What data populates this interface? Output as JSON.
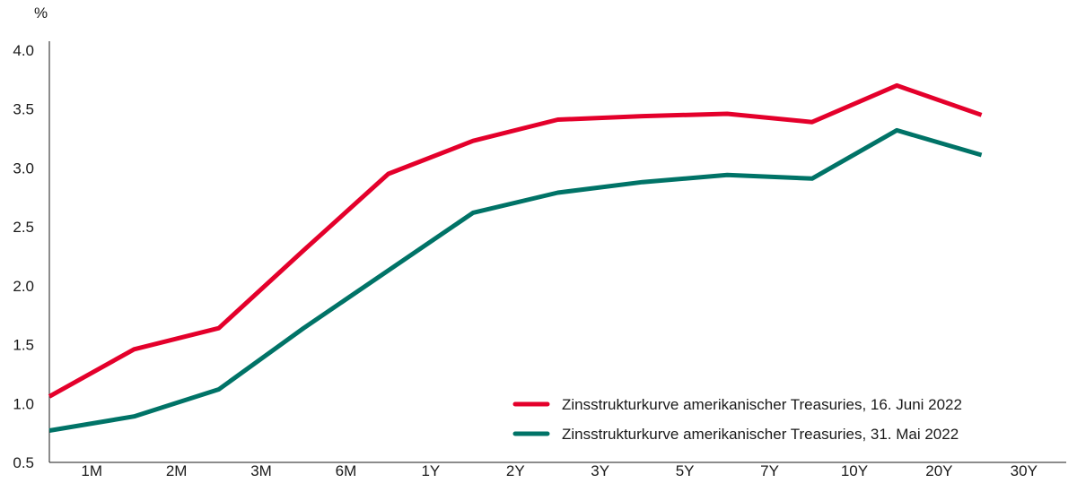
{
  "chart_data": {
    "type": "line",
    "title": "",
    "xlabel": "",
    "ylabel": "%",
    "categories": [
      "1M",
      "2M",
      "3M",
      "6M",
      "1Y",
      "2Y",
      "3Y",
      "5Y",
      "7Y",
      "10Y",
      "20Y",
      "30Y"
    ],
    "y_ticks": [
      "0.5",
      "1.0",
      "1.5",
      "2.0",
      "2.5",
      "3.0",
      "3.5",
      "4.0"
    ],
    "ylim": [
      0.5,
      4.0
    ],
    "grid": false,
    "legend_position": "bottom-right",
    "series": [
      {
        "name": "Zinsstrukturkurve amerikanischer Treasuries, 16. Juni 2022",
        "color": "#e4002b",
        "values": [
          1.06,
          1.46,
          1.64,
          2.3,
          2.95,
          3.23,
          3.41,
          3.44,
          3.46,
          3.39,
          3.7,
          3.45
        ]
      },
      {
        "name": "Zinsstrukturkurve amerikanischer Treasuries, 31. Mai 2022",
        "color": "#007367",
        "values": [
          0.77,
          0.89,
          1.12,
          1.64,
          2.13,
          2.62,
          2.79,
          2.88,
          2.94,
          2.91,
          3.32,
          3.11
        ]
      }
    ]
  }
}
